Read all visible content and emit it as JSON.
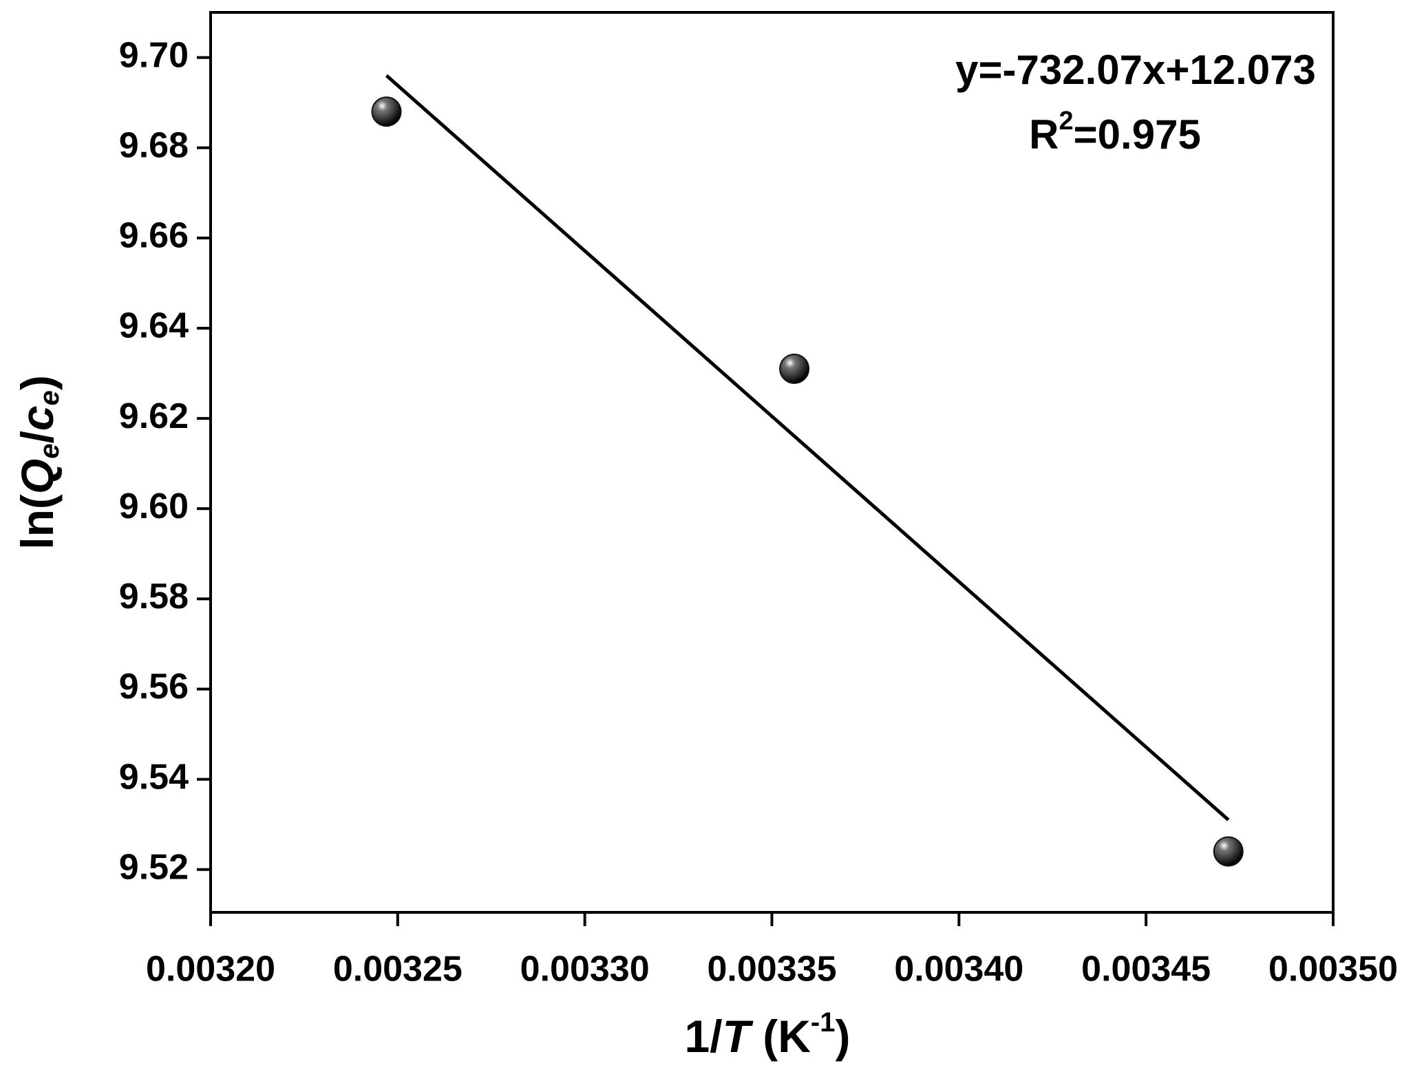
{
  "chart_data": {
    "type": "scatter",
    "x_label": {
      "parts": [
        "1/",
        "T",
        " (K",
        "-1",
        ")"
      ]
    },
    "y_label": {
      "parts": [
        "ln(",
        "Q",
        "e",
        "/",
        "c",
        "e",
        ")"
      ]
    },
    "annotations": {
      "equation": "y=-732.07x+12.073",
      "r2": {
        "parts": [
          "R",
          "2",
          "=0.975"
        ]
      }
    },
    "x": [
      0.003247,
      0.003356,
      0.003472
    ],
    "values": [
      9.688,
      9.631,
      9.524
    ],
    "color": "#111111",
    "fit": {
      "x": [
        0.003247,
        0.003472
      ],
      "values": [
        9.696,
        9.531
      ],
      "color": "#000000"
    },
    "xlim": [
      0.0032,
      0.0035
    ],
    "ylim": [
      9.5105,
      9.71
    ],
    "xticks": [
      {
        "value": 0.0032,
        "label": "0.00320"
      },
      {
        "value": 0.00325,
        "label": "0.00325"
      },
      {
        "value": 0.0033,
        "label": "0.00330"
      },
      {
        "value": 0.00335,
        "label": "0.00335"
      },
      {
        "value": 0.0034,
        "label": "0.00340"
      },
      {
        "value": 0.00345,
        "label": "0.00345"
      },
      {
        "value": 0.0035,
        "label": "0.00350"
      }
    ],
    "yticks": [
      9.52,
      9.54,
      9.56,
      9.58,
      {
        "value": 9.6,
        "label": "9.60"
      },
      9.62,
      9.64,
      9.66,
      9.68,
      {
        "value": 9.7,
        "label": "9.70"
      }
    ],
    "grid": false
  }
}
